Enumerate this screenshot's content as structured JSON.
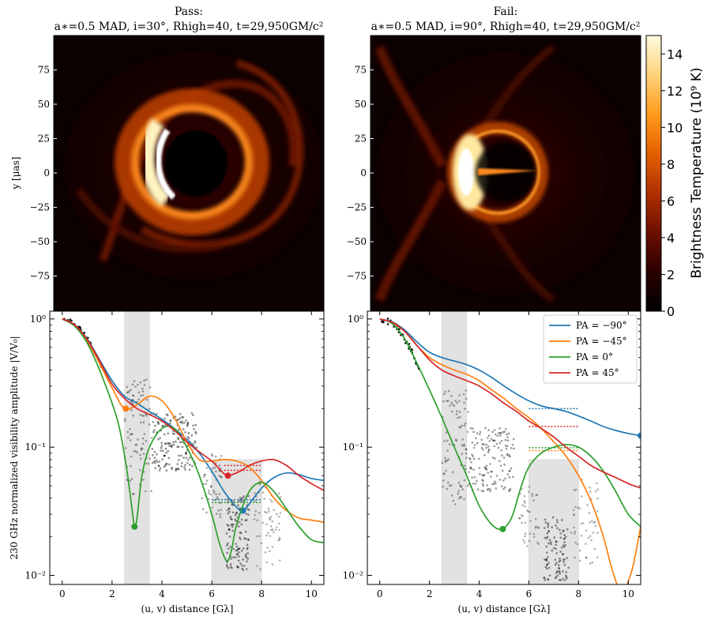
{
  "chart_data": [
    {
      "type": "heatmap",
      "panel": "top-left",
      "title": "Pass:",
      "subtitle": "a∗=0.5 MAD, i=30°, Rhigh=40, t=29,950GM/c²",
      "ylabel": "y [μas]",
      "xlim": [
        -100,
        100
      ],
      "ylim": [
        -100,
        100
      ],
      "yticks": [
        "75",
        "50",
        "25",
        "0",
        "−25",
        "−50",
        "−75"
      ],
      "image": {
        "inclination_deg": 30
      }
    },
    {
      "type": "heatmap",
      "panel": "top-right",
      "title": "Fail:",
      "subtitle": "a∗=0.5 MAD, i=90°, Rhigh=40, t=29,950GM/c²",
      "xlim": [
        -100,
        100
      ],
      "ylim": [
        -100,
        100
      ],
      "yticks": [
        "75",
        "50",
        "25",
        "0",
        "−25",
        "−50",
        "−75"
      ],
      "image": {
        "inclination_deg": 90
      }
    },
    {
      "type": "line",
      "panel": "bottom-left",
      "xlabel": "(u, v) distance [Gλ]",
      "ylabel": "230 GHz normalized visibility amplitude |V/V₀|",
      "xlim": [
        -0.5,
        10.5
      ],
      "ylim": [
        0.0085,
        1.15
      ],
      "yscale": "log",
      "xticks": [
        "0",
        "2",
        "4",
        "6",
        "8",
        "10"
      ],
      "yticks": [
        "10⁰",
        "10⁻¹",
        "10⁻²"
      ],
      "shaded_regions": [
        {
          "x": [
            2.5,
            3.5
          ],
          "y": [
            0.0085,
            1.15
          ]
        },
        {
          "x": [
            6.0,
            8.0
          ],
          "y": [
            0.0085,
            0.08
          ]
        }
      ],
      "series": [
        {
          "color": "#1f77b4",
          "x": [
            0,
            0.5,
            1,
            1.5,
            2,
            2.5,
            3,
            3.5,
            4,
            4.5,
            5,
            5.5,
            6,
            6.5,
            7,
            7.25,
            7.5,
            8,
            8.5,
            9,
            9.5,
            10,
            10.5
          ],
          "values": [
            1.0,
            0.9,
            0.7,
            0.48,
            0.33,
            0.25,
            0.22,
            0.19,
            0.165,
            0.14,
            0.115,
            0.09,
            0.065,
            0.045,
            0.034,
            0.032,
            0.036,
            0.048,
            0.058,
            0.063,
            0.061,
            0.057,
            0.055
          ],
          "marker": [
            7.25,
            0.032
          ]
        },
        {
          "color": "#ff7f0e",
          "x": [
            0,
            0.5,
            1,
            1.5,
            2,
            2.5,
            3,
            3.5,
            4,
            4.5,
            5,
            5.5,
            6,
            6.5,
            7,
            7.5,
            8,
            8.5,
            9,
            9.5,
            10,
            10.5
          ],
          "values": [
            1.0,
            0.9,
            0.68,
            0.45,
            0.29,
            0.2,
            0.215,
            0.25,
            0.23,
            0.17,
            0.11,
            0.08,
            0.078,
            0.08,
            0.078,
            0.07,
            0.055,
            0.04,
            0.032,
            0.028,
            0.027,
            0.026
          ],
          "marker": [
            2.55,
            0.2
          ]
        },
        {
          "color": "#2ca02c",
          "x": [
            0,
            0.5,
            1,
            1.5,
            2,
            2.3,
            2.6,
            2.8,
            2.9,
            3.0,
            3.2,
            3.5,
            4,
            4.5,
            5,
            5.5,
            6,
            6.3,
            6.6,
            6.8,
            7,
            7.5,
            8,
            8.5,
            9,
            9.5,
            10,
            10.5
          ],
          "values": [
            1.0,
            0.88,
            0.65,
            0.4,
            0.22,
            0.14,
            0.065,
            0.033,
            0.024,
            0.028,
            0.06,
            0.1,
            0.14,
            0.14,
            0.1,
            0.06,
            0.03,
            0.018,
            0.013,
            0.016,
            0.025,
            0.045,
            0.053,
            0.045,
            0.033,
            0.024,
            0.019,
            0.018
          ],
          "marker": [
            2.9,
            0.024
          ]
        },
        {
          "color": "#d62728",
          "x": [
            0,
            0.5,
            1,
            1.5,
            2,
            2.5,
            3,
            3.5,
            4,
            4.5,
            5,
            5.5,
            6,
            6.3,
            6.6,
            6.9,
            7.2,
            7.5,
            8,
            8.5,
            9,
            9.5,
            10,
            10.5
          ],
          "values": [
            1.0,
            0.9,
            0.69,
            0.47,
            0.31,
            0.24,
            0.2,
            0.18,
            0.16,
            0.135,
            0.11,
            0.092,
            0.078,
            0.068,
            0.06,
            0.062,
            0.066,
            0.072,
            0.078,
            0.08,
            0.072,
            0.06,
            0.052,
            0.046
          ],
          "marker": [
            6.65,
            0.06
          ]
        }
      ],
      "reference_lines": [
        {
          "color": "#d62728",
          "x": [
            6.5,
            8.0
          ],
          "y": 0.072
        },
        {
          "color": "#d62728",
          "x": [
            6.5,
            8.0
          ],
          "y": 0.066
        },
        {
          "color": "#1f77b4",
          "x": [
            6.0,
            8.0
          ],
          "y": 0.039
        },
        {
          "color": "#2ca02c",
          "x": [
            6.0,
            8.0
          ],
          "y": 0.037
        }
      ]
    },
    {
      "type": "line",
      "panel": "bottom-right",
      "xlabel": "(u, v) distance [Gλ]",
      "xlim": [
        -0.5,
        10.5
      ],
      "ylim": [
        0.0085,
        1.15
      ],
      "yscale": "log",
      "xticks": [
        "0",
        "2",
        "4",
        "6",
        "8",
        "10"
      ],
      "yticks": [
        "10⁰",
        "10⁻¹",
        "10⁻²"
      ],
      "legend": "top-right",
      "shaded_regions": [
        {
          "x": [
            2.5,
            3.5
          ],
          "y": [
            0.0085,
            1.15
          ]
        },
        {
          "x": [
            6.0,
            8.0
          ],
          "y": [
            0.0085,
            0.08
          ]
        }
      ],
      "series": [
        {
          "name": "PA = −90°",
          "color": "#1f77b4",
          "x": [
            0,
            0.5,
            1,
            1.5,
            2,
            2.5,
            3,
            3.5,
            4,
            4.5,
            5,
            5.5,
            6,
            6.5,
            7,
            7.5,
            8,
            8.5,
            9,
            9.5,
            10,
            10.5
          ],
          "values": [
            1.0,
            0.95,
            0.82,
            0.66,
            0.55,
            0.5,
            0.47,
            0.44,
            0.4,
            0.35,
            0.3,
            0.26,
            0.23,
            0.21,
            0.2,
            0.19,
            0.175,
            0.16,
            0.145,
            0.135,
            0.128,
            0.123
          ],
          "marker": [
            10.5,
            0.123
          ]
        },
        {
          "name": "PA = −45°",
          "color": "#ff7f0e",
          "x": [
            0,
            0.5,
            1,
            1.5,
            2,
            2.5,
            3,
            3.5,
            4,
            4.5,
            5,
            5.5,
            6,
            6.5,
            7,
            7.5,
            8,
            8.5,
            9,
            9.3,
            9.6,
            9.8,
            10,
            10.2,
            10.5
          ],
          "values": [
            1.0,
            0.94,
            0.8,
            0.62,
            0.5,
            0.44,
            0.4,
            0.37,
            0.33,
            0.28,
            0.24,
            0.2,
            0.17,
            0.14,
            0.11,
            0.085,
            0.06,
            0.038,
            0.02,
            0.012,
            0.008,
            0.007,
            0.009,
            0.012,
            0.024
          ]
        },
        {
          "name": "PA = 0°",
          "color": "#2ca02c",
          "x": [
            0,
            0.5,
            1,
            1.5,
            2,
            2.5,
            3,
            3.5,
            4,
            4.5,
            4.9,
            5.3,
            5.7,
            6,
            6.5,
            7,
            7.5,
            8,
            8.5,
            9,
            9.5,
            10,
            10.5
          ],
          "values": [
            1.0,
            0.92,
            0.7,
            0.45,
            0.28,
            0.17,
            0.1,
            0.06,
            0.035,
            0.025,
            0.023,
            0.028,
            0.05,
            0.07,
            0.09,
            0.1,
            0.105,
            0.1,
            0.085,
            0.065,
            0.045,
            0.03,
            0.024
          ],
          "marker": [
            4.95,
            0.023
          ]
        },
        {
          "name": "PA = 45°",
          "color": "#d62728",
          "x": [
            0,
            0.5,
            1,
            1.5,
            2,
            2.5,
            3,
            3.5,
            4,
            4.5,
            5,
            5.5,
            6,
            6.5,
            7,
            7.5,
            8,
            8.5,
            9,
            9.5,
            10,
            10.5
          ],
          "values": [
            1.0,
            0.94,
            0.8,
            0.62,
            0.48,
            0.4,
            0.36,
            0.33,
            0.3,
            0.26,
            0.22,
            0.19,
            0.16,
            0.14,
            0.12,
            0.1,
            0.085,
            0.072,
            0.064,
            0.058,
            0.052,
            0.048
          ]
        }
      ],
      "reference_lines": [
        {
          "color": "#1f77b4",
          "x": [
            6.0,
            8.0
          ],
          "y": 0.2
        },
        {
          "color": "#d62728",
          "x": [
            6.0,
            8.0
          ],
          "y": 0.145
        },
        {
          "color": "#2ca02c",
          "x": [
            6.0,
            8.0
          ],
          "y": 0.099
        },
        {
          "color": "#ff7f0e",
          "x": [
            6.0,
            8.0
          ],
          "y": 0.094
        }
      ]
    }
  ],
  "colorbar": {
    "label": "Brightness Temperature (10⁹ K)",
    "range": [
      0,
      15
    ],
    "ticks": [
      "0",
      "2",
      "4",
      "6",
      "8",
      "10",
      "12",
      "14"
    ],
    "colors": [
      "#000000",
      "#2a0000",
      "#6e0f00",
      "#b03000",
      "#e46000",
      "#ff9a1a",
      "#ffd27a",
      "#fffbe0"
    ]
  }
}
